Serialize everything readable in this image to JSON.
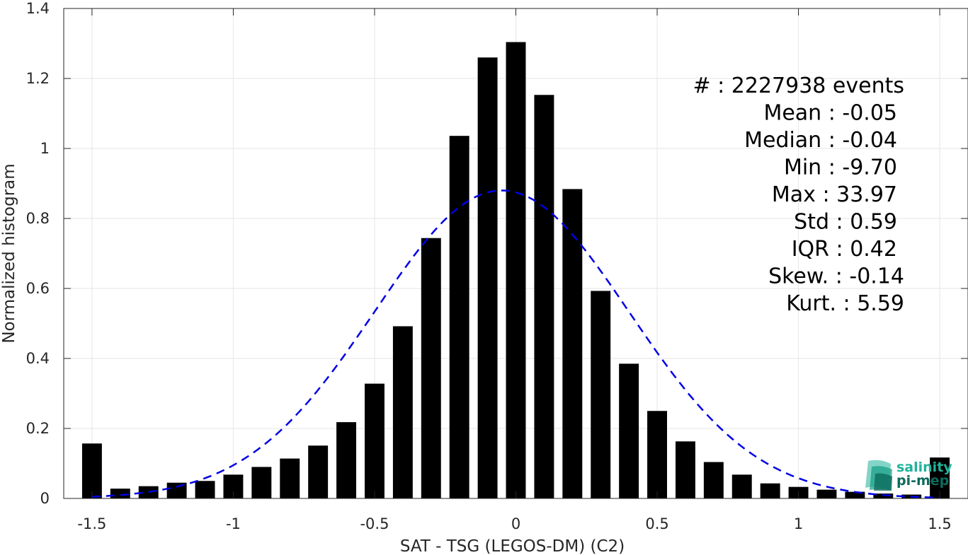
{
  "chart_data": {
    "type": "bar",
    "xlabel": "SAT - TSG (LEGOS-DM) (C2)",
    "ylabel": "Normalized histogram",
    "xlim": [
      -1.6,
      1.6
    ],
    "ylim": [
      0,
      1.4
    ],
    "x_ticks": [
      -1.5,
      -1,
      -0.5,
      0,
      0.5,
      1,
      1.5
    ],
    "x_tick_labels": [
      "-1.5",
      "-1",
      "-0.5",
      "0",
      "0.5",
      "1",
      "1.5"
    ],
    "y_ticks": [
      0,
      0.2,
      0.4,
      0.6,
      0.8,
      1,
      1.2,
      1.4
    ],
    "y_tick_labels": [
      "0",
      "0.2",
      "0.4",
      "0.6",
      "0.8",
      "1",
      "1.2",
      "1.4"
    ],
    "grid": true,
    "bins": [
      -1.5,
      -1.4,
      -1.3,
      -1.2,
      -1.1,
      -1.0,
      -0.9,
      -0.8,
      -0.7,
      -0.6,
      -0.5,
      -0.4,
      -0.3,
      -0.2,
      -0.1,
      0.0,
      0.1,
      0.2,
      0.3,
      0.4,
      0.5,
      0.6,
      0.7,
      0.8,
      0.9,
      1.0,
      1.1,
      1.2,
      1.3,
      1.4,
      1.5
    ],
    "values": [
      0.157,
      0.028,
      0.035,
      0.045,
      0.05,
      0.068,
      0.09,
      0.114,
      0.151,
      0.218,
      0.328,
      0.492,
      0.744,
      1.036,
      1.26,
      1.304,
      1.153,
      0.884,
      0.593,
      0.385,
      0.25,
      0.163,
      0.104,
      0.068,
      0.043,
      0.033,
      0.025,
      0.019,
      0.014,
      0.011,
      0.117
    ],
    "bar_color": "#000000",
    "fit_curve": {
      "name": "gaussian fit",
      "mean": -0.05,
      "std": 0.45,
      "peak": 0.88,
      "x_range": [
        -1.5,
        1.5
      ],
      "color": "#0000e6",
      "style": "dashed"
    },
    "stats_lines": [
      "#  : 2227938 events",
      "Mean : -0.05",
      "Median : -0.04",
      "Min : -9.70",
      "Max : 33.97",
      "Std : 0.59",
      "IQR : 0.42",
      "Skew. : -0.14",
      "Kurt. : 5.59"
    ],
    "stats_placement": "top-right"
  },
  "logo": {
    "line1": "salinity",
    "line2": "pi-mep",
    "color_main": "#1fb39a",
    "color_dark": "#0d6b5c"
  }
}
